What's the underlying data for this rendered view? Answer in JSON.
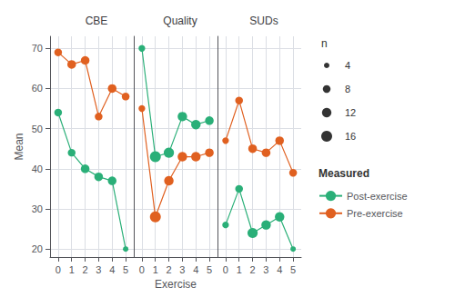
{
  "chart_data": [
    {
      "type": "line",
      "title": "CBE",
      "ylabel": "Mean",
      "x": [
        0,
        1,
        2,
        3,
        4,
        5
      ],
      "series": [
        {
          "name": "Post-exercise",
          "color": "#2aaf78",
          "values": [
            54,
            44,
            40,
            38,
            37,
            20
          ],
          "n": [
            8,
            8,
            10,
            10,
            10,
            4
          ]
        },
        {
          "name": "Pre-exercise",
          "color": "#e06020",
          "values": [
            69,
            66,
            67,
            53,
            60,
            58
          ],
          "n": [
            8,
            10,
            10,
            8,
            10,
            8
          ]
        }
      ],
      "xlim": [
        -0.6,
        5.6
      ],
      "xticks": [
        0,
        1,
        2,
        3,
        4,
        5
      ],
      "ylim": [
        18,
        73
      ],
      "yticks": [
        20,
        30,
        40,
        50,
        60,
        70
      ],
      "grid": true,
      "marker": "circle"
    },
    {
      "type": "line",
      "title": "Quality",
      "xlabel": "Exercise",
      "x": [
        0,
        1,
        2,
        3,
        4,
        5
      ],
      "series": [
        {
          "name": "Post-exercise",
          "color": "#2aaf78",
          "values": [
            70,
            43,
            44,
            53,
            51,
            52
          ],
          "n": [
            6,
            16,
            14,
            12,
            12,
            10
          ]
        },
        {
          "name": "Pre-exercise",
          "color": "#e06020",
          "values": [
            55,
            28,
            37,
            43,
            43,
            44
          ],
          "n": [
            6,
            16,
            12,
            12,
            12,
            10
          ]
        }
      ],
      "xlim": [
        -0.6,
        5.6
      ],
      "xticks": [
        0,
        1,
        2,
        3,
        4,
        5
      ],
      "ylim": [
        18,
        73
      ],
      "yticks": [
        20,
        30,
        40,
        50,
        60,
        70
      ],
      "grid": true,
      "marker": "circle",
      "tick_labels": "x"
    },
    {
      "type": "line",
      "title": "SUDs",
      "x": [
        0,
        1,
        2,
        3,
        4,
        5
      ],
      "series": [
        {
          "name": "Post-exercise",
          "color": "#2aaf78",
          "values": [
            26,
            35,
            24,
            26,
            28,
            20
          ],
          "n": [
            6,
            8,
            14,
            12,
            12,
            4
          ]
        },
        {
          "name": "Pre-exercise",
          "color": "#e06020",
          "values": [
            47,
            57,
            45,
            44,
            47,
            39
          ],
          "n": [
            6,
            8,
            10,
            10,
            10,
            8
          ]
        }
      ],
      "xlim": [
        -0.6,
        5.6
      ],
      "xticks": [
        0,
        1,
        2,
        3,
        4,
        5
      ],
      "ylim": [
        18,
        73
      ],
      "yticks": [
        20,
        30,
        40,
        50,
        60,
        70
      ],
      "grid": true,
      "marker": "circle",
      "tick_labels": "x",
      "legend": "right",
      "legend_title": "Measured",
      "size_legend": {
        "title": "n",
        "values": [
          4,
          8,
          12,
          16
        ]
      }
    }
  ]
}
